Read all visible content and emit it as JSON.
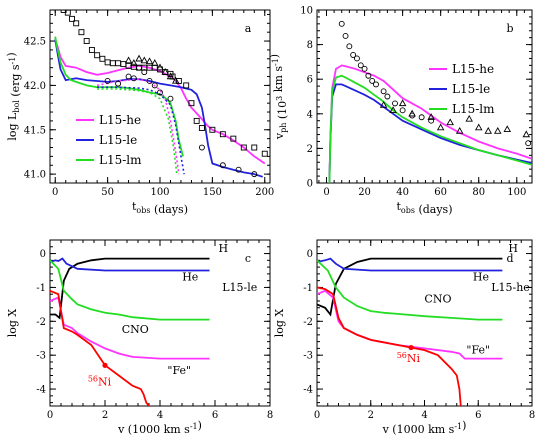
{
  "chart_data": [
    {
      "type": "line",
      "panel_label": "a",
      "xlabel": "t_obs (days)",
      "ylabel": "log L_bol (erg s^-1)",
      "xlim": [
        -5,
        205
      ],
      "ylim": [
        40.9,
        42.85
      ],
      "xticks": [
        0,
        50,
        100,
        150,
        200
      ],
      "yticks": [
        41.0,
        41.5,
        42.0,
        42.5
      ],
      "legend_placement": "lower-left",
      "series": [
        {
          "name": "L15-he",
          "color": "#ff33ff",
          "style": "solid",
          "x": [
            0,
            2,
            5,
            10,
            20,
            30,
            40,
            50,
            60,
            70,
            80,
            90,
            100,
            110,
            115,
            120,
            125,
            130,
            140,
            145,
            150,
            160,
            170,
            180,
            190,
            200
          ],
          "y": [
            42.5,
            42.45,
            42.32,
            42.22,
            42.2,
            42.15,
            42.12,
            42.14,
            42.17,
            42.2,
            42.22,
            42.2,
            42.16,
            42.1,
            42.05,
            41.97,
            41.85,
            41.75,
            41.62,
            41.55,
            41.5,
            41.45,
            41.38,
            41.3,
            41.2,
            41.12
          ]
        },
        {
          "name": "L15-le",
          "color": "#2222dd",
          "style": "solid",
          "x": [
            0,
            2,
            5,
            10,
            20,
            30,
            40,
            50,
            60,
            70,
            80,
            90,
            100,
            110,
            120,
            130,
            135,
            140,
            143,
            146,
            150,
            160,
            170,
            180,
            190,
            198
          ],
          "y": [
            42.52,
            42.38,
            42.18,
            42.06,
            42.08,
            42.06,
            42.05,
            42.04,
            42.05,
            42.07,
            42.07,
            42.05,
            42.02,
            42.0,
            41.98,
            41.95,
            41.9,
            41.75,
            41.55,
            41.32,
            41.12,
            41.08,
            41.05,
            41.02,
            41.0,
            40.97
          ]
        },
        {
          "name": "L15-lm",
          "color": "#22dd22",
          "style": "solid",
          "x": [
            0,
            2,
            5,
            10,
            15,
            20,
            30,
            40,
            50,
            60,
            70,
            80,
            90,
            100,
            105,
            110,
            115,
            118,
            122
          ],
          "y": [
            42.55,
            42.42,
            42.26,
            42.12,
            42.06,
            42.04,
            42.0,
            41.98,
            41.98,
            41.98,
            41.97,
            41.95,
            41.92,
            41.9,
            41.86,
            41.8,
            41.6,
            41.38,
            41.2
          ]
        },
        {
          "name": "L15-he dotted",
          "color": "#ff33ff",
          "style": "dotted",
          "x": [
            40,
            60,
            80,
            90,
            100,
            105,
            110,
            115,
            118
          ],
          "y": [
            42.0,
            42.05,
            42.07,
            42.04,
            41.95,
            41.85,
            41.6,
            41.25,
            41.0
          ]
        },
        {
          "name": "L15-le dotted",
          "color": "#2222dd",
          "style": "dotted",
          "x": [
            40,
            60,
            80,
            90,
            100,
            110,
            115,
            120,
            123
          ],
          "y": [
            41.98,
            41.98,
            41.97,
            41.95,
            41.9,
            41.78,
            41.55,
            41.2,
            41.0
          ]
        },
        {
          "name": "L15-lm dotted",
          "color": "#22dd22",
          "style": "dotted",
          "x": [
            40,
            60,
            80,
            90,
            100,
            108,
            113,
            116
          ],
          "y": [
            41.96,
            41.96,
            41.94,
            41.92,
            41.85,
            41.62,
            41.3,
            41.0
          ]
        }
      ],
      "observations": [
        {
          "marker": "square",
          "x": [
            8,
            12,
            16,
            20,
            25,
            30,
            35,
            40,
            45,
            50,
            55,
            60,
            65,
            70,
            75,
            80,
            85,
            90,
            95,
            100,
            105,
            110,
            112,
            118,
            125,
            130,
            135,
            140,
            150,
            160,
            170,
            180,
            190,
            200
          ],
          "y": [
            42.85,
            42.82,
            42.75,
            42.7,
            42.6,
            42.5,
            42.4,
            42.34,
            42.3,
            42.26,
            42.25,
            42.25,
            42.24,
            42.22,
            42.21,
            42.2,
            42.2,
            42.2,
            42.2,
            42.18,
            42.15,
            42.13,
            42.1,
            42.05,
            42.0,
            41.8,
            41.6,
            41.52,
            41.5,
            41.45,
            41.4,
            41.3,
            41.3,
            41.23
          ]
        },
        {
          "marker": "triangle",
          "x": [
            70,
            75,
            80,
            85,
            90,
            95,
            100,
            105,
            110,
            115
          ],
          "y": [
            42.28,
            42.25,
            42.3,
            42.28,
            42.27,
            42.25,
            42.2,
            42.15,
            42.1,
            42.05
          ]
        },
        {
          "marker": "circle",
          "x": [
            50,
            60,
            70,
            75,
            80,
            85,
            90,
            95,
            100,
            110,
            140,
            160,
            175,
            190
          ],
          "y": [
            42.05,
            42.02,
            42.1,
            42.08,
            42.2,
            42.15,
            42.05,
            42.0,
            41.92,
            41.85,
            41.3,
            41.1,
            41.05,
            41.0
          ]
        }
      ]
    },
    {
      "type": "line",
      "panel_label": "b",
      "xlabel": "t_obs (days)",
      "ylabel": "v_ph (10^3 km s^-1)",
      "xlim": [
        -5,
        108
      ],
      "ylim": [
        0,
        10
      ],
      "xticks": [
        0,
        20,
        40,
        60,
        80,
        100
      ],
      "yticks": [
        0,
        2,
        4,
        6,
        8,
        10
      ],
      "legend_placement": "top-right",
      "series": [
        {
          "name": "L15-he",
          "color": "#ff33ff",
          "style": "solid",
          "x": [
            1.5,
            2,
            3,
            5,
            8,
            10,
            15,
            20,
            25,
            30,
            35,
            40,
            50,
            60,
            70,
            80,
            90,
            100,
            108
          ],
          "y": [
            0,
            2.5,
            5.5,
            6.6,
            6.8,
            6.75,
            6.6,
            6.4,
            6.2,
            5.9,
            5.4,
            4.9,
            4.3,
            3.5,
            2.9,
            2.4,
            2.0,
            1.7,
            1.4
          ]
        },
        {
          "name": "L15-le",
          "color": "#2222dd",
          "style": "solid",
          "x": [
            1.5,
            2,
            3,
            5,
            8,
            10,
            15,
            20,
            25,
            30,
            35,
            40,
            50,
            60,
            70,
            80,
            90,
            100,
            108
          ],
          "y": [
            0,
            2.3,
            5.0,
            5.7,
            5.7,
            5.6,
            5.35,
            5.1,
            4.8,
            4.4,
            4.0,
            3.6,
            3.1,
            2.6,
            2.2,
            1.9,
            1.6,
            1.35,
            1.15
          ]
        },
        {
          "name": "L15-lm",
          "color": "#22dd22",
          "style": "solid",
          "x": [
            1.5,
            2,
            3,
            5,
            8,
            10,
            15,
            20,
            25,
            30,
            35,
            40,
            50,
            60,
            70,
            80,
            90,
            100,
            108
          ],
          "y": [
            0,
            2.4,
            5.3,
            6.1,
            6.2,
            6.1,
            5.8,
            5.5,
            5.1,
            4.7,
            4.2,
            3.8,
            3.2,
            2.7,
            2.3,
            1.9,
            1.6,
            1.3,
            1.05
          ]
        }
      ],
      "observations": [
        {
          "marker": "circle",
          "x": [
            8,
            10,
            12,
            14,
            16,
            18,
            20,
            22,
            24,
            26,
            30,
            32,
            36,
            40,
            45,
            50,
            55,
            106
          ],
          "y": [
            9.2,
            8.5,
            7.9,
            7.4,
            7.2,
            6.8,
            6.6,
            6.2,
            5.9,
            5.7,
            5.3,
            5.0,
            4.6,
            4.2,
            3.9,
            3.8,
            3.6,
            2.3
          ]
        },
        {
          "marker": "triangle",
          "x": [
            30,
            35,
            40,
            45,
            55,
            60,
            65,
            70,
            75,
            80,
            85,
            90,
            95,
            105
          ],
          "y": [
            4.5,
            4.2,
            4.6,
            4.0,
            3.8,
            3.2,
            3.5,
            3.0,
            3.7,
            3.2,
            3.0,
            3.0,
            3.1,
            2.8
          ]
        }
      ]
    },
    {
      "type": "line",
      "panel_label": "c",
      "xlabel": "v (1000 km s^-1)",
      "ylabel": "log X",
      "xlim": [
        0,
        8
      ],
      "ylim": [
        -4.5,
        0.4
      ],
      "xticks": [
        0,
        2,
        4,
        6,
        8
      ],
      "yticks": [
        -4,
        -3,
        -2,
        -1,
        0
      ],
      "model_label": "L15-le",
      "series": [
        {
          "name": "H",
          "color": "#000000",
          "style": "solid",
          "x": [
            0,
            0.2,
            0.35,
            0.5,
            0.7,
            1.0,
            1.5,
            2,
            3,
            4,
            5,
            5.8
          ],
          "y": [
            -1.8,
            -1.8,
            -1.9,
            -0.8,
            -0.45,
            -0.3,
            -0.2,
            -0.15,
            -0.15,
            -0.15,
            -0.15,
            -0.15
          ]
        },
        {
          "name": "He",
          "color": "#2222dd",
          "style": "solid",
          "x": [
            0,
            0.2,
            0.3,
            0.45,
            0.6,
            1.0,
            2,
            3,
            4,
            5,
            5.8
          ],
          "y": [
            -0.25,
            -0.2,
            -0.22,
            -0.15,
            -0.3,
            -0.45,
            -0.5,
            -0.5,
            -0.5,
            -0.5,
            -0.5
          ]
        },
        {
          "name": "CNO",
          "color": "#22dd22",
          "style": "solid",
          "x": [
            0,
            0.3,
            0.5,
            0.8,
            1.0,
            1.5,
            2,
            2.5,
            3,
            4,
            5,
            5.8
          ],
          "y": [
            -0.2,
            -0.45,
            -1.1,
            -1.35,
            -1.5,
            -1.65,
            -1.75,
            -1.8,
            -1.88,
            -1.95,
            -1.95,
            -1.95
          ]
        },
        {
          "name": "\"Fe\"",
          "color": "#ff33ff",
          "style": "solid",
          "x": [
            0,
            0.3,
            0.5,
            0.8,
            1.0,
            1.5,
            2,
            2.5,
            3,
            4,
            5,
            5.8
          ],
          "y": [
            -1.4,
            -1.3,
            -2.1,
            -2.2,
            -2.35,
            -2.6,
            -2.8,
            -2.95,
            -3.05,
            -3.1,
            -3.1,
            -3.1
          ]
        },
        {
          "name": "56Ni",
          "color": "#ff0000",
          "style": "solid",
          "x": [
            0,
            0.3,
            0.5,
            0.8,
            1.0,
            1.5,
            2,
            2.5,
            3,
            3.3,
            3.4,
            3.5,
            3.6
          ],
          "y": [
            -1.1,
            -1.2,
            -2.2,
            -2.3,
            -2.4,
            -2.7,
            -3.3,
            -3.6,
            -3.9,
            -4.0,
            -4.15,
            -4.4,
            -4.5
          ]
        }
      ],
      "annotations": {
        "H": "H",
        "He": "He",
        "CNO": "CNO",
        "Fe": "\"Fe\"",
        "Ni": "56Ni",
        "panel": "c"
      }
    },
    {
      "type": "line",
      "panel_label": "d",
      "xlabel": "v (1000 km s^-1)",
      "ylabel": "log X",
      "xlim": [
        0,
        8
      ],
      "ylim": [
        -4.5,
        0.4
      ],
      "xticks": [
        0,
        2,
        4,
        6,
        8
      ],
      "yticks": [
        -4,
        -3,
        -2,
        -1,
        0
      ],
      "model_label": "L15-he",
      "series": [
        {
          "name": "H",
          "color": "#000000",
          "style": "solid",
          "x": [
            0,
            0.3,
            0.5,
            0.7,
            1.0,
            1.5,
            2,
            3,
            4,
            5,
            6,
            6.9
          ],
          "y": [
            -1.5,
            -1.6,
            -1.8,
            -0.9,
            -0.45,
            -0.25,
            -0.15,
            -0.15,
            -0.15,
            -0.15,
            -0.15,
            -0.15
          ]
        },
        {
          "name": "He",
          "color": "#2222dd",
          "style": "solid",
          "x": [
            0,
            0.3,
            0.5,
            0.7,
            1.0,
            2,
            3,
            4,
            5,
            6,
            6.9
          ],
          "y": [
            -0.25,
            -0.2,
            -0.15,
            -0.3,
            -0.45,
            -0.5,
            -0.5,
            -0.5,
            -0.5,
            -0.5,
            -0.5
          ]
        },
        {
          "name": "CNO",
          "color": "#22dd22",
          "style": "solid",
          "x": [
            0,
            0.4,
            0.7,
            1.0,
            1.5,
            2,
            2.5,
            3,
            4,
            5,
            6,
            6.9
          ],
          "y": [
            -0.2,
            -0.5,
            -1.0,
            -1.3,
            -1.55,
            -1.7,
            -1.75,
            -1.78,
            -1.85,
            -1.9,
            -1.95,
            -1.95
          ]
        },
        {
          "name": "\"Fe\"",
          "color": "#ff33ff",
          "style": "solid",
          "x": [
            0,
            0.3,
            0.6,
            0.8,
            1.0,
            1.5,
            2,
            3,
            4,
            5,
            5.3,
            5.5,
            6,
            6.9
          ],
          "y": [
            -1.2,
            -1.1,
            -1.3,
            -2.0,
            -2.2,
            -2.4,
            -2.55,
            -2.7,
            -2.8,
            -2.9,
            -2.95,
            -3.1,
            -3.1,
            -3.1
          ]
        },
        {
          "name": "56Ni",
          "color": "#ff0000",
          "style": "solid",
          "x": [
            0,
            0.3,
            0.6,
            0.8,
            1.0,
            1.5,
            2,
            3,
            4,
            4.5,
            5.0,
            5.2,
            5.3,
            5.35
          ],
          "y": [
            -1.0,
            -1.05,
            -1.2,
            -1.9,
            -2.2,
            -2.4,
            -2.55,
            -2.7,
            -2.85,
            -3.0,
            -3.4,
            -3.6,
            -4.0,
            -4.5
          ]
        }
      ],
      "annotations": {
        "H": "H",
        "He": "He",
        "CNO": "CNO",
        "Fe": "\"Fe\"",
        "Ni": "56Ni",
        "panel": "d"
      }
    }
  ]
}
